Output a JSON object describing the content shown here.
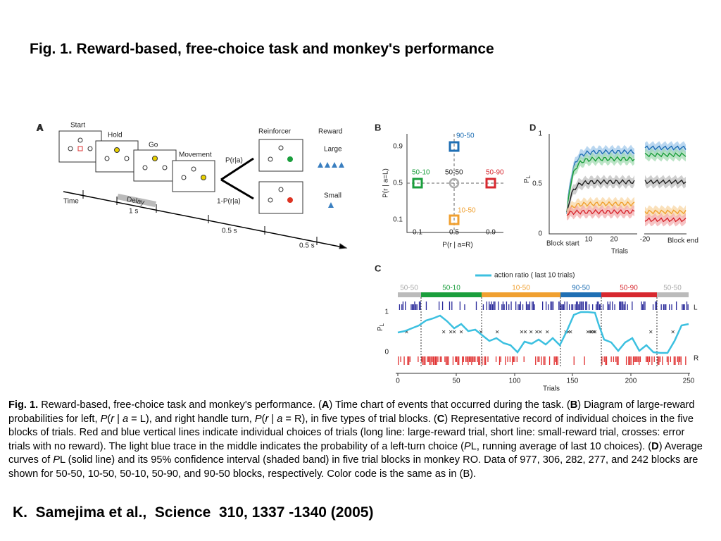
{
  "title": "Fig. 1. Reward-based, free-choice task and monkey's performance",
  "figure": {
    "panel_a": {
      "label": "A",
      "stages": [
        "Start",
        "Hold",
        "Go",
        "Movement"
      ],
      "reinforcer": "Reinforcer",
      "reward": "Reward",
      "large": "Large",
      "small": "Small",
      "p_upper": "P(r|a)",
      "p_lower": "1-P(r|a)",
      "time": "Time",
      "delay": "Delay",
      "durations": [
        "1 s",
        "0.5 s",
        "0.5 s"
      ]
    },
    "panel_b": {
      "label": "B",
      "y_label": "P(r | a=L)",
      "x_label": "P(r | a=R)",
      "ticks": [
        "0.1",
        "0.5",
        "0.9"
      ],
      "blocks": [
        "90-50",
        "50-10",
        "50-50",
        "50-90",
        "10-50"
      ]
    },
    "panel_c": {
      "label": "C",
      "legend": "action ratio ( last 10 trials)",
      "blocks": [
        "50-50",
        "50-10",
        "10-50",
        "90-50",
        "50-90",
        "50-50"
      ],
      "y_label": "P",
      "y_sub": "L",
      "y_ticks": [
        "1",
        "0"
      ],
      "left": "L",
      "right": "R",
      "x_ticks": [
        "0",
        "50",
        "100",
        "150",
        "200",
        "250"
      ],
      "x_label": "Trials"
    },
    "panel_d": {
      "label": "D",
      "y_label": "P",
      "y_sub": "L",
      "y_ticks": [
        "1",
        "0.5",
        "0"
      ],
      "x_ticks": [
        "10",
        "20"
      ],
      "end_tick": "-20",
      "start": "Block start",
      "end": "Block end",
      "x_label": "Trials"
    }
  },
  "caption": [
    "Fig. 1.",
    " Reward-based, free-choice task and monkey's performance. (",
    "A",
    ") Time chart of events that occurred during the task. (",
    "B",
    ") Diagram of large-reward probabilities for left, ",
    "P",
    "(",
    "r",
    " | ",
    "a",
    " = L), and right handle turn, ",
    "P",
    "(",
    "r",
    " | ",
    "a",
    " = R), in five types of trial blocks. (",
    "C",
    ") Representative record of individual choices in the five blocks of trials. Red and blue vertical lines indicate individual choices of trials (long line: large-reward trial, short line: small-reward trial, crosses: error trials with no reward). The light blue trace in the middle indicates the probability of a left-turn choice (",
    "P",
    "L, running average of last 10 choices). (",
    "D",
    ") Average curves of ",
    "P",
    "L (solid line) and its 95% confidence interval (shaded band) in five trial blocks in monkey RO. Data of 977, 306, 282, 277, and 242 blocks are shown for 50-50, 10-50, 50-10, 50-90, and 90-50 blocks, respectively. Color code is the same as in (B)."
  ],
  "citation": "K.  Samejima et al.,  Science  310, 1337 -1340 (2005)"
}
